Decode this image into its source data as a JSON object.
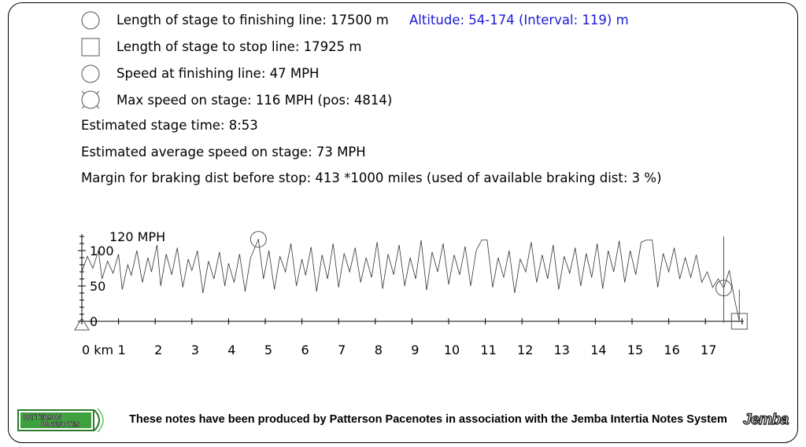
{
  "info": {
    "finish_length": "Length of stage to finishing line: 17500 m",
    "altitude": "Altitude: 54-174 (Interval: 119) m",
    "stop_length": "Length of stage to stop line: 17925 m",
    "finish_speed": "Speed at finishing line: 47 MPH",
    "max_speed": "Max speed on stage: 116 MPH (pos: 4814)",
    "stage_time": "Estimated stage time: 8:53",
    "avg_speed": "Estimated average speed on stage: 73 MPH",
    "braking_margin": "Margin for braking dist before stop: 413 *1000 miles (used of available braking dist: 3 %)"
  },
  "icons": {
    "finish": "circle-icon",
    "stop": "square-icon",
    "finish_speed": "circle-icon",
    "max_speed": "dashed-circle-icon",
    "start": "triangle-icon"
  },
  "chart_data": {
    "type": "line",
    "y_unit_label": "120 MPH",
    "y_ticks": [
      "0",
      "50",
      "100"
    ],
    "ylim": [
      0,
      120
    ],
    "x_unit_label": "0 km",
    "x_ticks": [
      "1",
      "2",
      "3",
      "4",
      "5",
      "6",
      "7",
      "8",
      "9",
      "10",
      "11",
      "12",
      "13",
      "14",
      "15",
      "16",
      "17"
    ],
    "xlim_km": [
      0,
      18
    ],
    "finish_km": 17.5,
    "stop_km": 17.925,
    "max_speed_marker": {
      "km": 4.814,
      "mph": 116
    },
    "finish_speed_marker": {
      "km": 17.5,
      "mph": 47
    },
    "series": [
      {
        "x_km": [
          0,
          0.15,
          0.3,
          0.45,
          0.55,
          0.7,
          0.85,
          1.0,
          1.1,
          1.25,
          1.35,
          1.5,
          1.65,
          1.8,
          1.9,
          2.05,
          2.15,
          2.3,
          2.45,
          2.6,
          2.75,
          2.9,
          3.0,
          3.15,
          3.3,
          3.45,
          3.6,
          3.75,
          3.9,
          4.0,
          4.15,
          4.3,
          4.45,
          4.6,
          4.814,
          4.95,
          5.1,
          5.25,
          5.4,
          5.55,
          5.7,
          5.85,
          6.0,
          6.1,
          6.25,
          6.4,
          6.55,
          6.7,
          6.85,
          7.0,
          7.15,
          7.3,
          7.45,
          7.6,
          7.75,
          7.9,
          8.05,
          8.2,
          8.35,
          8.5,
          8.65,
          8.8,
          8.95,
          9.1,
          9.25,
          9.4,
          9.55,
          9.7,
          9.85,
          10.0,
          10.15,
          10.3,
          10.45,
          10.6,
          10.75,
          10.9,
          11.05,
          11.2,
          11.35,
          11.5,
          11.65,
          11.8,
          11.95,
          12.1,
          12.25,
          12.4,
          12.55,
          12.7,
          12.85,
          13.0,
          13.15,
          13.3,
          13.45,
          13.6,
          13.75,
          13.9,
          14.05,
          14.2,
          14.35,
          14.5,
          14.65,
          14.8,
          14.95,
          15.1,
          15.25,
          15.4,
          15.55,
          15.7,
          15.85,
          16.0,
          16.15,
          16.3,
          16.45,
          16.6,
          16.75,
          16.9,
          17.05,
          17.2,
          17.35,
          17.5,
          17.65,
          17.8,
          17.925
        ],
        "y_mph": [
          70,
          92,
          75,
          100,
          60,
          85,
          68,
          95,
          45,
          80,
          65,
          100,
          55,
          90,
          70,
          108,
          50,
          95,
          66,
          104,
          48,
          88,
          72,
          100,
          40,
          85,
          60,
          98,
          50,
          82,
          55,
          95,
          42,
          90,
          116,
          60,
          100,
          45,
          92,
          70,
          110,
          50,
          88,
          65,
          105,
          42,
          94,
          60,
          110,
          48,
          96,
          70,
          104,
          55,
          90,
          62,
          112,
          46,
          95,
          66,
          108,
          50,
          90,
          60,
          115,
          44,
          98,
          70,
          110,
          52,
          94,
          66,
          106,
          50,
          100,
          115,
          115,
          48,
          90,
          62,
          100,
          40,
          88,
          70,
          112,
          55,
          94,
          60,
          108,
          45,
          92,
          68,
          104,
          50,
          96,
          62,
          110,
          46,
          100,
          70,
          114,
          55,
          100,
          66,
          112,
          115,
          115,
          48,
          96,
          70,
          104,
          60,
          90,
          62,
          94,
          55,
          70,
          48,
          60,
          47,
          72,
          30,
          0
        ]
      }
    ]
  },
  "footer": {
    "credit": "These notes have been produced by Patterson Pacenotes in association with the Jemba Intertia Notes System",
    "logo_left_line1": "PATTERSON",
    "logo_left_line2": "PACENOTES",
    "logo_right": "Jemba"
  }
}
